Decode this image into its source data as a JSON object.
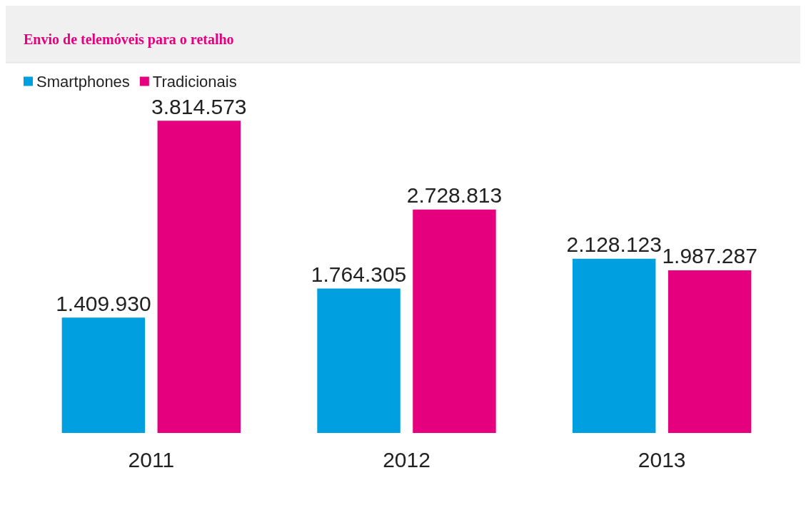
{
  "chart_data": {
    "type": "bar",
    "title": "Envio de telemóveis para o retalho",
    "categories": [
      "2011",
      "2012",
      "2013"
    ],
    "series": [
      {
        "name": "Smartphones",
        "color": "#009fdf",
        "values": [
          1409930,
          1764305,
          2128123
        ],
        "value_labels": [
          "1.409.930",
          "1.764.305",
          "2.128.123"
        ]
      },
      {
        "name": "Tradicionais",
        "color": "#e5007e",
        "values": [
          3814573,
          2728813,
          1987287
        ],
        "value_labels": [
          "3.814.573",
          "2.728.813",
          "1.987.287"
        ]
      }
    ],
    "legend": "top left"
  }
}
